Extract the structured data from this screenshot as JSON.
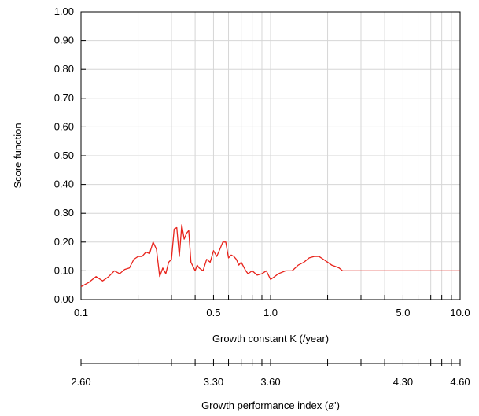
{
  "chart_data": {
    "type": "line",
    "title": "",
    "xlabel": "Growth constant K (/year)",
    "ylabel": "Score function",
    "x_scale": "log",
    "xlim": [
      0.1,
      10.0
    ],
    "ylim": [
      0.0,
      1.0
    ],
    "grid": true,
    "x_tick_labels": [
      "0.1",
      "0.5",
      "1.0",
      "5.0",
      "10.0"
    ],
    "y_tick_labels": [
      "0.00",
      "0.10",
      "0.20",
      "0.30",
      "0.40",
      "0.50",
      "0.60",
      "0.70",
      "0.80",
      "0.90",
      "1.00"
    ],
    "line_color": "#e8231b",
    "secondary_axis": {
      "label": "Growth performance index (ø')",
      "tick_labels": [
        "2.60",
        "3.30",
        "3.60",
        "4.30",
        "4.60"
      ]
    },
    "series": [
      {
        "name": "",
        "x": [
          0.1,
          0.11,
          0.12,
          0.13,
          0.14,
          0.15,
          0.16,
          0.17,
          0.18,
          0.19,
          0.2,
          0.21,
          0.22,
          0.23,
          0.24,
          0.25,
          0.26,
          0.27,
          0.28,
          0.29,
          0.3,
          0.31,
          0.32,
          0.33,
          0.34,
          0.35,
          0.36,
          0.37,
          0.38,
          0.39,
          0.4,
          0.41,
          0.42,
          0.43,
          0.44,
          0.46,
          0.48,
          0.5,
          0.52,
          0.54,
          0.56,
          0.58,
          0.6,
          0.62,
          0.64,
          0.66,
          0.68,
          0.7,
          0.72,
          0.74,
          0.76,
          0.78,
          0.8,
          0.85,
          0.9,
          0.95,
          1.0,
          1.05,
          1.1,
          1.2,
          1.3,
          1.4,
          1.5,
          1.6,
          1.7,
          1.8,
          1.9,
          2.0,
          2.1,
          2.2,
          2.3,
          2.4,
          2.5,
          3.0,
          4.0,
          5.0,
          6.0,
          7.0,
          8.0,
          9.0,
          10.0
        ],
        "y": [
          0.045,
          0.06,
          0.08,
          0.065,
          0.08,
          0.1,
          0.09,
          0.105,
          0.11,
          0.14,
          0.15,
          0.15,
          0.165,
          0.16,
          0.2,
          0.175,
          0.08,
          0.11,
          0.09,
          0.13,
          0.14,
          0.245,
          0.25,
          0.15,
          0.26,
          0.21,
          0.23,
          0.24,
          0.13,
          0.115,
          0.1,
          0.12,
          0.11,
          0.105,
          0.1,
          0.14,
          0.13,
          0.17,
          0.15,
          0.175,
          0.2,
          0.2,
          0.145,
          0.155,
          0.15,
          0.14,
          0.12,
          0.13,
          0.115,
          0.1,
          0.09,
          0.095,
          0.1,
          0.085,
          0.09,
          0.1,
          0.07,
          0.08,
          0.09,
          0.1,
          0.1,
          0.12,
          0.13,
          0.145,
          0.15,
          0.15,
          0.14,
          0.13,
          0.12,
          0.115,
          0.11,
          0.1,
          0.1,
          0.1,
          0.1,
          0.1,
          0.1,
          0.1,
          0.1,
          0.1,
          0.1
        ]
      }
    ]
  }
}
